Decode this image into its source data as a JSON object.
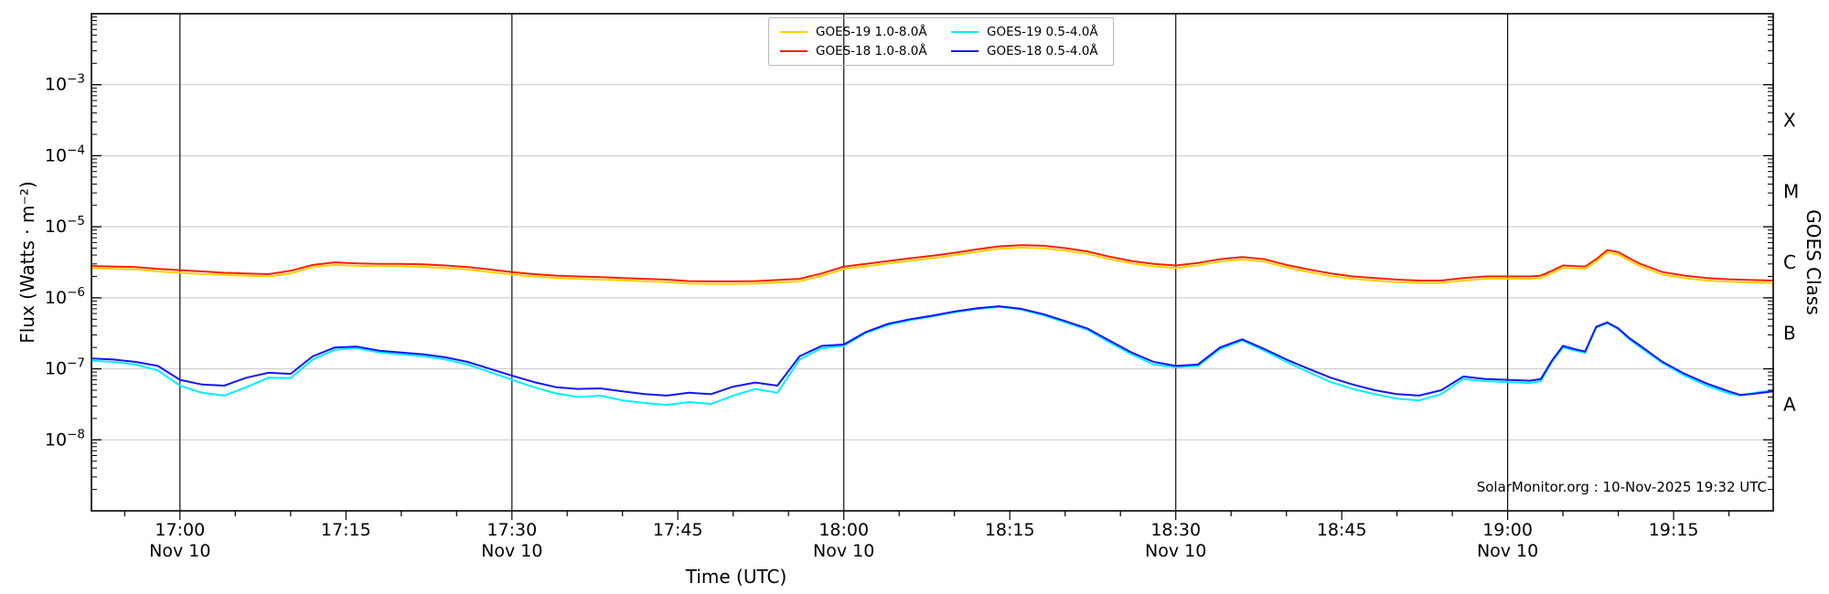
{
  "chart_data": {
    "type": "line",
    "title": "",
    "xlabel": "Time (UTC)",
    "ylabel": "Flux (Watts · m⁻²)",
    "right_ylabel": "GOES Class",
    "watermark": "SolarMonitor.org : 10-Nov-2025 19:32 UTC",
    "grid": "horizontal-gray-decades, vertical-black-lines-at-00-and-30",
    "legend_position": "top-center-inside",
    "x_axis": {
      "unit": "minutes from 17:00 UTC",
      "start_min": -8,
      "end_min": 144,
      "minor_tick_every_min": 5,
      "major_ticks": [
        {
          "min": 0,
          "label": "17:00",
          "date": "Nov 10",
          "line": true
        },
        {
          "min": 15,
          "label": "17:15",
          "date": "",
          "line": false
        },
        {
          "min": 30,
          "label": "17:30",
          "date": "Nov 10",
          "line": true
        },
        {
          "min": 45,
          "label": "17:45",
          "date": "",
          "line": false
        },
        {
          "min": 60,
          "label": "18:00",
          "date": "Nov 10",
          "line": true
        },
        {
          "min": 75,
          "label": "18:15",
          "date": "",
          "line": false
        },
        {
          "min": 90,
          "label": "18:30",
          "date": "Nov 10",
          "line": true
        },
        {
          "min": 105,
          "label": "18:45",
          "date": "",
          "line": false
        },
        {
          "min": 120,
          "label": "19:00",
          "date": "Nov 10",
          "line": true
        },
        {
          "min": 135,
          "label": "19:15",
          "date": "",
          "line": false
        }
      ]
    },
    "y_axis": {
      "scale": "log",
      "ylim_log": [
        -9,
        -2
      ],
      "labeled_decades": [
        -3,
        -4,
        -5,
        -6,
        -7,
        -8
      ],
      "grid_color": "#c8c8c8"
    },
    "goes_classes": [
      {
        "label": "X",
        "log_center": -3.5
      },
      {
        "label": "M",
        "log_center": -4.5
      },
      {
        "label": "C",
        "log_center": -5.5
      },
      {
        "label": "B",
        "log_center": -6.5
      },
      {
        "label": "A",
        "log_center": -7.5
      }
    ],
    "x": [
      -8,
      -6,
      -4,
      -2,
      0,
      2,
      4,
      6,
      8,
      10,
      12,
      14,
      16,
      18,
      20,
      22,
      24,
      26,
      28,
      30,
      32,
      34,
      36,
      38,
      40,
      42,
      44,
      46,
      48,
      50,
      52,
      54,
      56,
      58,
      60,
      62,
      64,
      66,
      68,
      70,
      72,
      74,
      76,
      78,
      80,
      82,
      84,
      86,
      88,
      90,
      92,
      94,
      96,
      98,
      100,
      102,
      104,
      106,
      108,
      110,
      112,
      114,
      116,
      118,
      120,
      122,
      123,
      124,
      125,
      126,
      127,
      128,
      129,
      130,
      131,
      132,
      134,
      136,
      138,
      140,
      141,
      142,
      144
    ],
    "series": [
      {
        "name": "GOES-19 1.0-8.0Å",
        "color": "#ffd000",
        "values": [
          2.6e-06,
          2.55e-06,
          2.5e-06,
          2.35e-06,
          2.25e-06,
          2.15e-06,
          2.1e-06,
          2.05e-06,
          2e-06,
          2.2e-06,
          2.7e-06,
          2.9e-06,
          2.82e-06,
          2.78e-06,
          2.78e-06,
          2.72e-06,
          2.63e-06,
          2.5e-06,
          2.3e-06,
          2.12e-06,
          2e-06,
          1.9e-06,
          1.85e-06,
          1.8e-06,
          1.76e-06,
          1.71e-06,
          1.66e-06,
          1.59e-06,
          1.57e-06,
          1.57e-06,
          1.59e-06,
          1.64e-06,
          1.71e-06,
          2.03e-06,
          2.54e-06,
          2.77e-06,
          3.05e-06,
          3.32e-06,
          3.6e-06,
          3.97e-06,
          4.43e-06,
          4.89e-06,
          5.08e-06,
          4.99e-06,
          4.62e-06,
          4.16e-06,
          3.51e-06,
          3.05e-06,
          2.77e-06,
          2.63e-06,
          2.86e-06,
          3.23e-06,
          3.46e-06,
          3.23e-06,
          2.68e-06,
          2.31e-06,
          2.03e-06,
          1.85e-06,
          1.75e-06,
          1.66e-06,
          1.62e-06,
          1.62e-06,
          1.75e-06,
          1.85e-06,
          1.85e-06,
          1.85e-06,
          1.89e-06,
          2.22e-06,
          2.63e-06,
          2.59e-06,
          2.54e-06,
          3.23e-06,
          4.34e-06,
          4.06e-06,
          3.32e-06,
          2.77e-06,
          2.12e-06,
          1.89e-06,
          1.75e-06,
          1.68e-06,
          1.66e-06,
          1.64e-06,
          1.62e-06
        ]
      },
      {
        "name": "GOES-18 1.0-8.0Å",
        "color": "#ff2000",
        "values": [
          2.8e-06,
          2.75e-06,
          2.7e-06,
          2.55e-06,
          2.45e-06,
          2.35e-06,
          2.25e-06,
          2.2e-06,
          2.15e-06,
          2.4e-06,
          2.9e-06,
          3.15e-06,
          3.05e-06,
          3e-06,
          3e-06,
          2.95e-06,
          2.85e-06,
          2.7e-06,
          2.5e-06,
          2.3e-06,
          2.15e-06,
          2.05e-06,
          2e-06,
          1.95e-06,
          1.9e-06,
          1.85e-06,
          1.8e-06,
          1.72e-06,
          1.7e-06,
          1.7e-06,
          1.72e-06,
          1.78e-06,
          1.85e-06,
          2.2e-06,
          2.75e-06,
          3e-06,
          3.3e-06,
          3.6e-06,
          3.9e-06,
          4.3e-06,
          4.8e-06,
          5.3e-06,
          5.5e-06,
          5.4e-06,
          5e-06,
          4.5e-06,
          3.8e-06,
          3.3e-06,
          3e-06,
          2.85e-06,
          3.1e-06,
          3.5e-06,
          3.75e-06,
          3.5e-06,
          2.9e-06,
          2.5e-06,
          2.2e-06,
          2e-06,
          1.9e-06,
          1.8e-06,
          1.75e-06,
          1.75e-06,
          1.9e-06,
          2e-06,
          2e-06,
          2e-06,
          2.05e-06,
          2.4e-06,
          2.85e-06,
          2.8e-06,
          2.75e-06,
          3.5e-06,
          4.7e-06,
          4.4e-06,
          3.6e-06,
          3e-06,
          2.3e-06,
          2.05e-06,
          1.9e-06,
          1.82e-06,
          1.8e-06,
          1.78e-06,
          1.75e-06
        ]
      },
      {
        "name": "GOES-19 0.5-4.0Å",
        "color": "#00eeff",
        "values": [
          1.3e-07,
          1.25e-07,
          1.15e-07,
          9.5e-08,
          5.8e-08,
          4.6e-08,
          4.2e-08,
          5.5e-08,
          7.5e-08,
          7.4e-08,
          1.35e-07,
          1.85e-07,
          1.95e-07,
          1.7e-07,
          1.6e-07,
          1.5e-07,
          1.35e-07,
          1.15e-07,
          9e-08,
          7e-08,
          5.5e-08,
          4.5e-08,
          4e-08,
          4.2e-08,
          3.6e-08,
          3.3e-08,
          3.1e-08,
          3.4e-08,
          3.2e-08,
          4.2e-08,
          5.2e-08,
          4.6e-08,
          1.35e-07,
          1.95e-07,
          2.1e-07,
          3.2e-07,
          4.15e-07,
          4.85e-07,
          5.45e-07,
          6.25e-07,
          6.95e-07,
          7.45e-07,
          6.85e-07,
          5.7e-07,
          4.5e-07,
          3.55e-07,
          2.35e-07,
          1.6e-07,
          1.15e-07,
          1.05e-07,
          1.1e-07,
          1.9e-07,
          2.5e-07,
          1.8e-07,
          1.25e-07,
          9e-08,
          6.5e-08,
          5.2e-08,
          4.4e-08,
          3.8e-08,
          3.6e-08,
          4.4e-08,
          7.2e-08,
          6.7e-08,
          6.5e-08,
          6.3e-08,
          6.7e-08,
          1.25e-07,
          2e-07,
          1.82e-07,
          1.68e-07,
          3.8e-07,
          4.4e-07,
          3.6e-07,
          2.6e-07,
          2e-07,
          1.2e-07,
          8e-08,
          5.8e-08,
          4.5e-08,
          4.2e-08,
          4.5e-08,
          5e-08
        ]
      },
      {
        "name": "GOES-18 0.5-4.0Å",
        "color": "#1414ff",
        "values": [
          1.4e-07,
          1.35e-07,
          1.25e-07,
          1.1e-07,
          7e-08,
          6e-08,
          5.8e-08,
          7.5e-08,
          8.8e-08,
          8.5e-08,
          1.5e-07,
          2e-07,
          2.05e-07,
          1.8e-07,
          1.7e-07,
          1.6e-07,
          1.45e-07,
          1.25e-07,
          1e-07,
          8e-08,
          6.5e-08,
          5.5e-08,
          5.2e-08,
          5.3e-08,
          4.8e-08,
          4.4e-08,
          4.2e-08,
          4.6e-08,
          4.4e-08,
          5.6e-08,
          6.4e-08,
          5.8e-08,
          1.5e-07,
          2.1e-07,
          2.2e-07,
          3.3e-07,
          4.3e-07,
          5e-07,
          5.6e-07,
          6.4e-07,
          7.1e-07,
          7.6e-07,
          7e-07,
          5.9e-07,
          4.7e-07,
          3.7e-07,
          2.5e-07,
          1.7e-07,
          1.25e-07,
          1.1e-07,
          1.15e-07,
          2e-07,
          2.6e-07,
          1.9e-07,
          1.35e-07,
          1e-07,
          7.5e-08,
          6e-08,
          5e-08,
          4.4e-08,
          4.2e-08,
          5e-08,
          7.8e-08,
          7.2e-08,
          7e-08,
          6.8e-08,
          7.2e-08,
          1.3e-07,
          2.1e-07,
          1.9e-07,
          1.75e-07,
          3.9e-07,
          4.5e-07,
          3.7e-07,
          2.7e-07,
          2.1e-07,
          1.25e-07,
          8.5e-08,
          6.2e-08,
          4.8e-08,
          4.3e-08,
          4.4e-08,
          4.8e-08
        ]
      }
    ]
  }
}
